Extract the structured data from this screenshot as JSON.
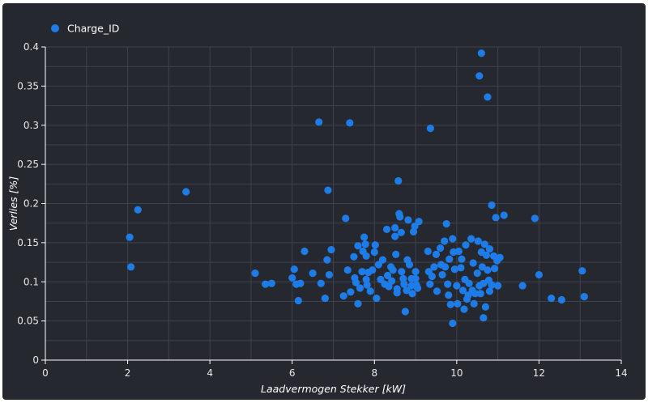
{
  "chart_data": {
    "type": "scatter",
    "xlabel": "Laadvermogen Stekker [kW]",
    "ylabel": "Verlies [%]",
    "xlim": [
      0,
      14
    ],
    "ylim": [
      0,
      0.4
    ],
    "x_ticks": [
      "0",
      "2",
      "4",
      "6",
      "8",
      "10",
      "12",
      "14"
    ],
    "y_ticks": [
      "0",
      "0.05",
      "0.1",
      "0.15",
      "0.2",
      "0.25",
      "0.3",
      "0.35",
      "0.4"
    ],
    "grid": true,
    "legend_position": "top-left",
    "colors": {
      "background": "#25282f",
      "grid": "#3e424b",
      "point": "#1e7ce8",
      "text": "#ffffff"
    },
    "series": [
      {
        "name": "Charge_ID",
        "points": [
          [
            2.05,
            0.157
          ],
          [
            2.08,
            0.119
          ],
          [
            2.25,
            0.192
          ],
          [
            3.42,
            0.215
          ],
          [
            5.1,
            0.111
          ],
          [
            5.35,
            0.097
          ],
          [
            5.5,
            0.098
          ],
          [
            6.0,
            0.105
          ],
          [
            6.05,
            0.116
          ],
          [
            6.1,
            0.097
          ],
          [
            6.15,
            0.076
          ],
          [
            6.2,
            0.098
          ],
          [
            6.3,
            0.139
          ],
          [
            6.5,
            0.111
          ],
          [
            6.65,
            0.304
          ],
          [
            6.7,
            0.098
          ],
          [
            6.8,
            0.079
          ],
          [
            6.85,
            0.128
          ],
          [
            6.87,
            0.217
          ],
          [
            6.9,
            0.109
          ],
          [
            6.95,
            0.141
          ],
          [
            7.25,
            0.082
          ],
          [
            7.3,
            0.181
          ],
          [
            7.35,
            0.115
          ],
          [
            7.4,
            0.303
          ],
          [
            7.42,
            0.087
          ],
          [
            7.5,
            0.132
          ],
          [
            7.52,
            0.105
          ],
          [
            7.55,
            0.099
          ],
          [
            7.6,
            0.146
          ],
          [
            7.6,
            0.072
          ],
          [
            7.65,
            0.092
          ],
          [
            7.7,
            0.113
          ],
          [
            7.72,
            0.139
          ],
          [
            7.75,
            0.157
          ],
          [
            7.78,
            0.148
          ],
          [
            7.8,
            0.133
          ],
          [
            7.8,
            0.103
          ],
          [
            7.82,
            0.096
          ],
          [
            7.85,
            0.112
          ],
          [
            7.9,
            0.088
          ],
          [
            7.95,
            0.115
          ],
          [
            8.0,
            0.138
          ],
          [
            8.02,
            0.147
          ],
          [
            8.05,
            0.079
          ],
          [
            8.1,
            0.122
          ],
          [
            8.15,
            0.103
          ],
          [
            8.2,
            0.128
          ],
          [
            8.25,
            0.097
          ],
          [
            8.3,
            0.167
          ],
          [
            8.32,
            0.108
          ],
          [
            8.35,
            0.094
          ],
          [
            8.4,
            0.119
          ],
          [
            8.42,
            0.101
          ],
          [
            8.45,
            0.115
          ],
          [
            8.5,
            0.158
          ],
          [
            8.5,
            0.169
          ],
          [
            8.52,
            0.135
          ],
          [
            8.55,
            0.091
          ],
          [
            8.55,
            0.086
          ],
          [
            8.58,
            0.229
          ],
          [
            8.6,
            0.187
          ],
          [
            8.62,
            0.183
          ],
          [
            8.65,
            0.163
          ],
          [
            8.66,
            0.113
          ],
          [
            8.7,
            0.104
          ],
          [
            8.72,
            0.097
          ],
          [
            8.75,
            0.062
          ],
          [
            8.78,
            0.089
          ],
          [
            8.8,
            0.128
          ],
          [
            8.82,
            0.179
          ],
          [
            8.85,
            0.122
          ],
          [
            8.9,
            0.104
          ],
          [
            8.9,
            0.095
          ],
          [
            8.92,
            0.085
          ],
          [
            8.95,
            0.164
          ],
          [
            8.98,
            0.171
          ],
          [
            9.0,
            0.113
          ],
          [
            9.0,
            0.104
          ],
          [
            9.02,
            0.096
          ],
          [
            9.05,
            0.092
          ],
          [
            9.08,
            0.177
          ],
          [
            9.3,
            0.139
          ],
          [
            9.32,
            0.113
          ],
          [
            9.35,
            0.097
          ],
          [
            9.36,
            0.296
          ],
          [
            9.4,
            0.107
          ],
          [
            9.45,
            0.119
          ],
          [
            9.5,
            0.135
          ],
          [
            9.52,
            0.088
          ],
          [
            9.6,
            0.143
          ],
          [
            9.62,
            0.122
          ],
          [
            9.65,
            0.109
          ],
          [
            9.7,
            0.152
          ],
          [
            9.72,
            0.119
          ],
          [
            9.75,
            0.174
          ],
          [
            9.78,
            0.097
          ],
          [
            9.8,
            0.083
          ],
          [
            9.82,
            0.129
          ],
          [
            9.85,
            0.071
          ],
          [
            9.9,
            0.155
          ],
          [
            9.9,
            0.047
          ],
          [
            9.92,
            0.138
          ],
          [
            9.95,
            0.116
          ],
          [
            10.0,
            0.095
          ],
          [
            10.02,
            0.072
          ],
          [
            10.05,
            0.139
          ],
          [
            10.1,
            0.118
          ],
          [
            10.12,
            0.129
          ],
          [
            10.15,
            0.089
          ],
          [
            10.18,
            0.065
          ],
          [
            10.2,
            0.103
          ],
          [
            10.22,
            0.147
          ],
          [
            10.25,
            0.078
          ],
          [
            10.28,
            0.083
          ],
          [
            10.3,
            0.098
          ],
          [
            10.35,
            0.155
          ],
          [
            10.38,
            0.089
          ],
          [
            10.4,
            0.124
          ],
          [
            10.42,
            0.072
          ],
          [
            10.45,
            0.085
          ],
          [
            10.5,
            0.111
          ],
          [
            10.52,
            0.152
          ],
          [
            10.55,
            0.363
          ],
          [
            10.55,
            0.095
          ],
          [
            10.58,
            0.085
          ],
          [
            10.6,
            0.392
          ],
          [
            10.6,
            0.138
          ],
          [
            10.62,
            0.119
          ],
          [
            10.65,
            0.054
          ],
          [
            10.65,
            0.098
          ],
          [
            10.68,
            0.148
          ],
          [
            10.7,
            0.068
          ],
          [
            10.72,
            0.134
          ],
          [
            10.75,
            0.336
          ],
          [
            10.75,
            0.115
          ],
          [
            10.78,
            0.102
          ],
          [
            10.8,
            0.142
          ],
          [
            10.8,
            0.088
          ],
          [
            10.85,
            0.198
          ],
          [
            10.85,
            0.096
          ],
          [
            10.9,
            0.133
          ],
          [
            10.92,
            0.117
          ],
          [
            10.95,
            0.182
          ],
          [
            10.98,
            0.127
          ],
          [
            11.0,
            0.095
          ],
          [
            11.05,
            0.131
          ],
          [
            11.15,
            0.185
          ],
          [
            11.6,
            0.095
          ],
          [
            11.9,
            0.181
          ],
          [
            12.0,
            0.109
          ],
          [
            12.3,
            0.079
          ],
          [
            12.55,
            0.077
          ],
          [
            13.05,
            0.114
          ],
          [
            13.1,
            0.081
          ]
        ]
      }
    ]
  }
}
